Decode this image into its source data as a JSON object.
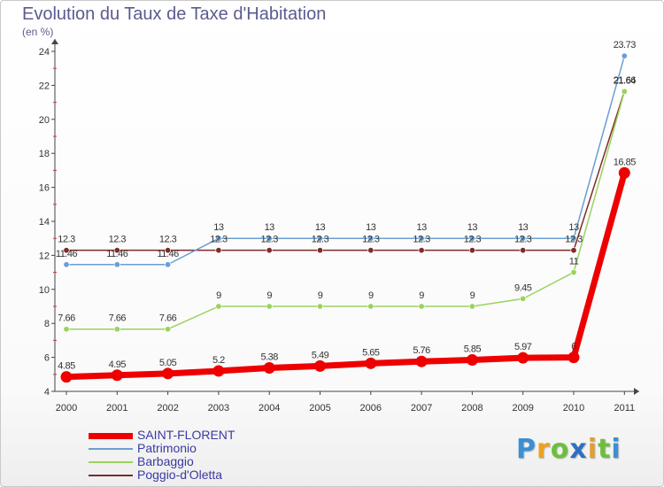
{
  "title": "Evolution du Taux de Taxe d'Habitation",
  "unit_label": "(en %)",
  "logo": {
    "letters": [
      {
        "ch": "P",
        "color": "#3b8fd3"
      },
      {
        "ch": "r",
        "color": "#f0a020"
      },
      {
        "ch": "o",
        "color": "#6cbf3b"
      },
      {
        "ch": "x",
        "color": "#2f6fc0"
      },
      {
        "ch": "i",
        "color": "#e0a030"
      },
      {
        "ch": "t",
        "color": "#6cbf3b"
      },
      {
        "ch": "i",
        "color": "#3b8fd3"
      }
    ]
  },
  "chart_data": {
    "type": "line",
    "title": "Evolution du Taux de Taxe d'Habitation",
    "ylabel": "(en %)",
    "xlabel": "",
    "categories": [
      "2000",
      "2001",
      "2002",
      "2003",
      "2004",
      "2005",
      "2006",
      "2007",
      "2008",
      "2009",
      "2010",
      "2011"
    ],
    "ylim": [
      4,
      24
    ],
    "yticks": [
      4,
      6,
      8,
      10,
      12,
      14,
      16,
      18,
      20,
      22,
      24
    ],
    "grid": false,
    "legend_position": "bottom-left",
    "series": [
      {
        "name": "SAINT-FLORENT",
        "color": "#ee0000",
        "values": [
          4.85,
          4.95,
          5.05,
          5.2,
          5.38,
          5.49,
          5.65,
          5.76,
          5.85,
          5.97,
          6.0,
          16.85
        ],
        "labels": [
          "4.85",
          "4.95",
          "5.05",
          "5.2",
          "5.38",
          "5.49",
          "5.65",
          "5.76",
          "5.85",
          "5.97",
          "6",
          "16.85"
        ]
      },
      {
        "name": "Patrimonio",
        "color": "#6a9ed4",
        "values": [
          11.46,
          11.46,
          11.46,
          13,
          13,
          13,
          13,
          13,
          13,
          13,
          13,
          23.73
        ],
        "labels": [
          "11.46",
          "11.46",
          "11.46",
          "13",
          "13",
          "13",
          "13",
          "13",
          "13",
          "13",
          "13",
          "23.73"
        ]
      },
      {
        "name": "Barbaggio",
        "color": "#99d35e",
        "values": [
          7.66,
          7.66,
          7.66,
          9,
          9,
          9,
          9,
          9,
          9,
          9.45,
          11,
          21.64
        ],
        "labels": [
          "7.66",
          "7.66",
          "7.66",
          "9",
          "9",
          "9",
          "9",
          "9",
          "9",
          "9.45",
          "11",
          "21.64"
        ]
      },
      {
        "name": "Poggio-d'Oletta",
        "color": "#7f2b2b",
        "values": [
          12.3,
          12.3,
          12.3,
          12.3,
          12.3,
          12.3,
          12.3,
          12.3,
          12.3,
          12.3,
          12.3,
          21.66
        ],
        "labels": [
          "12.3",
          "12.3",
          "12.3",
          "12.3",
          "12.3",
          "12.3",
          "12.3",
          "12.3",
          "12.3",
          "12.3",
          "12.3",
          "21.66"
        ]
      }
    ]
  }
}
